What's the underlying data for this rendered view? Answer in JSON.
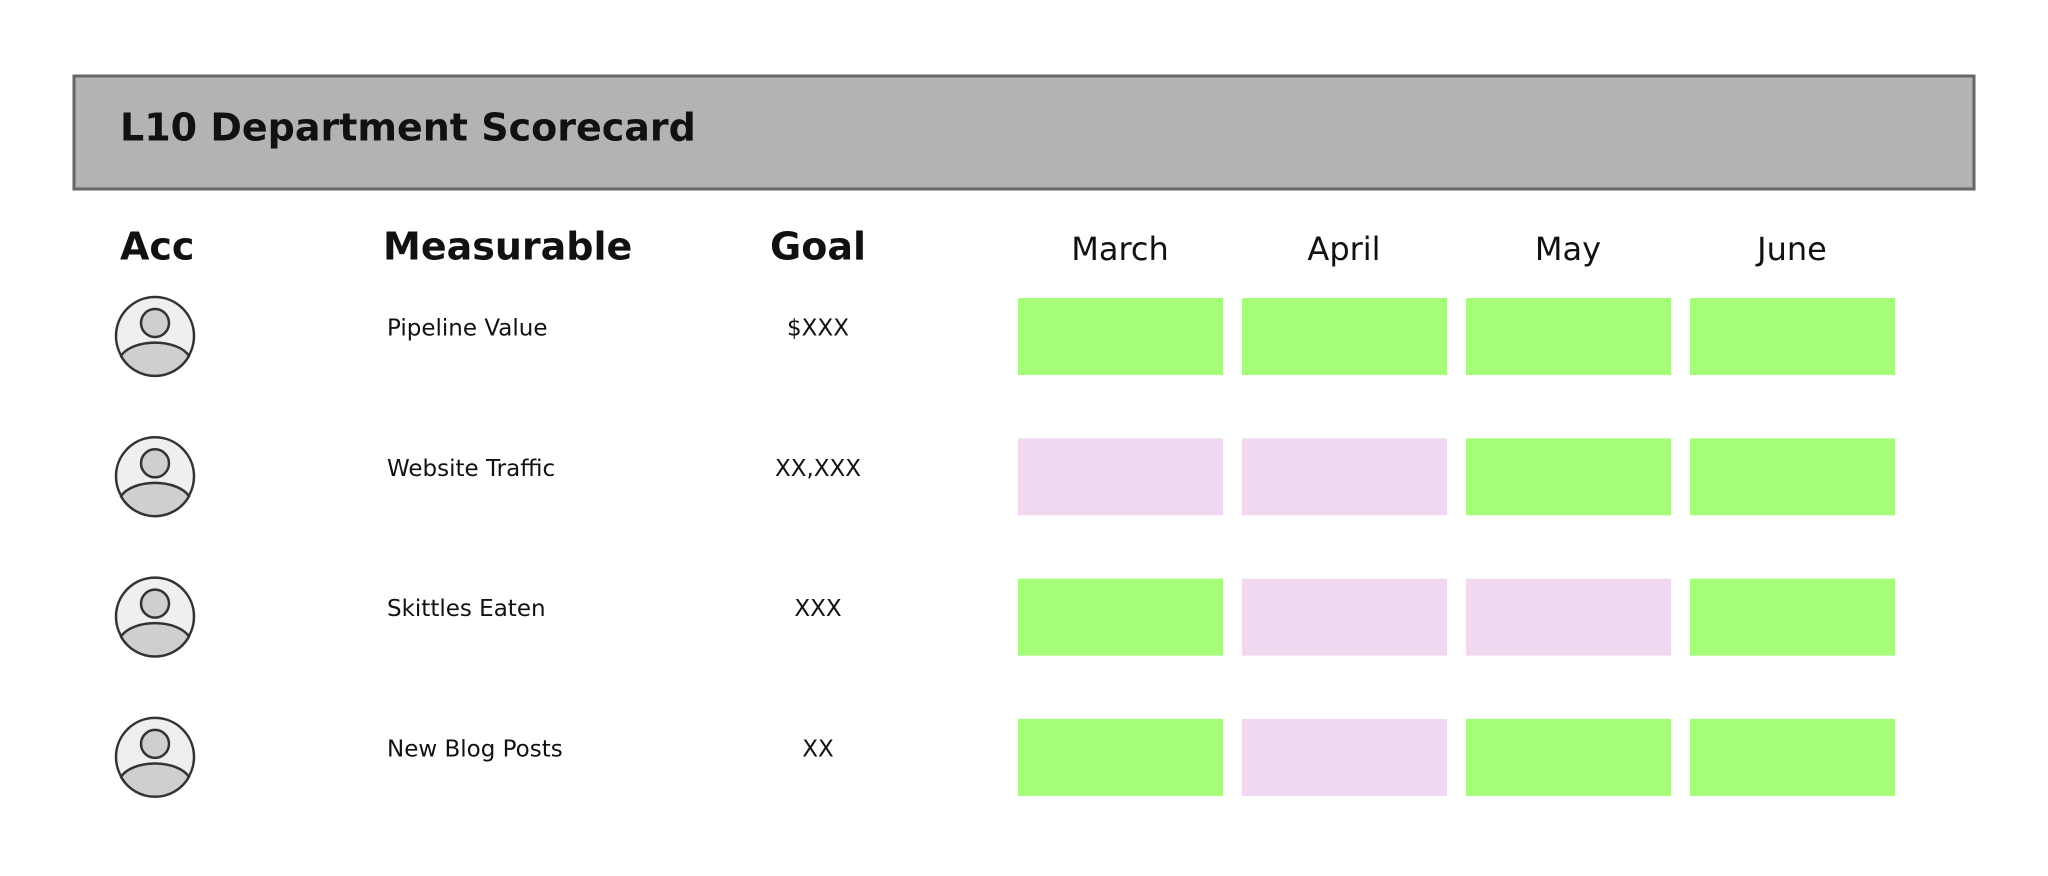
{
  "header": {
    "title": "L10 Department Scorecard"
  },
  "table": {
    "columns": [
      "Acc",
      "Measurable",
      "Goal"
    ],
    "months": [
      "March",
      "April",
      "May",
      "June"
    ],
    "rows": [
      {
        "measurable": "Pipeline Value",
        "goal": "$XXX",
        "cells": [
          "#a6fd7a",
          "#a6fd7a",
          "#a6fd7a",
          "#a6fd7a"
        ]
      },
      {
        "measurable": "Website Traffic",
        "goal": "XX,XXX",
        "cells": [
          "#f0d9f0",
          "#f0d9f0",
          "#a6fd7a",
          "#a6fd7a"
        ]
      },
      {
        "measurable": "Skittles Eaten",
        "goal": "XXX",
        "cells": [
          "#a6fd7a",
          "#f0d9f0",
          "#f0d9f0",
          "#a6fd7a"
        ]
      },
      {
        "measurable": "New Blog Posts",
        "goal": "XX",
        "cells": [
          "#a6fd7a",
          "#f0d9f0",
          "#a6fd7a",
          "#a6fd7a"
        ]
      }
    ]
  }
}
